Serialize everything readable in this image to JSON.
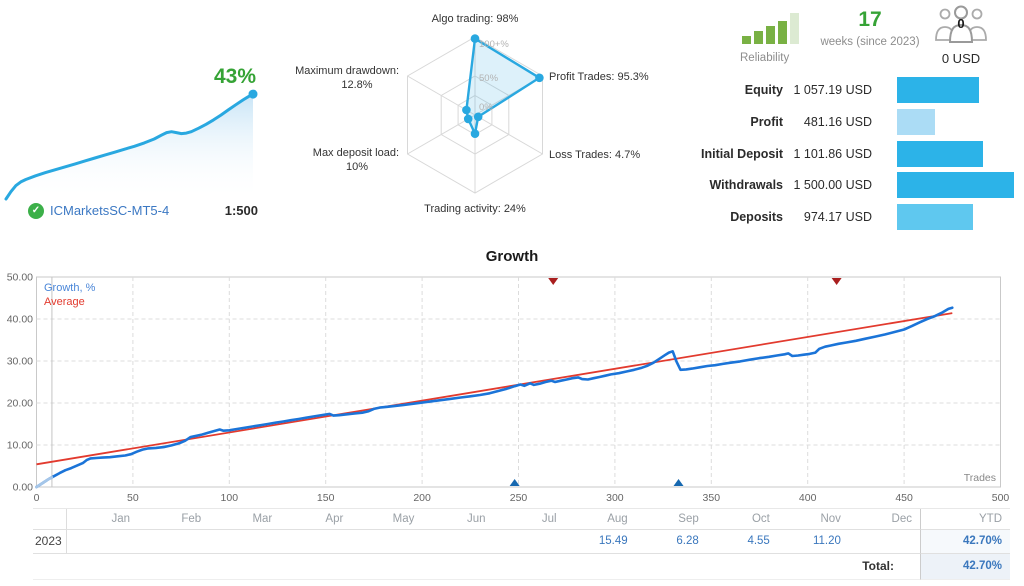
{
  "account": {
    "growth_label": "43%",
    "server": "ICMarketsSC-MT5-4",
    "leverage": "1:500",
    "verified_icon": "check-badge-icon"
  },
  "summary": {
    "reliability_label": "Reliability",
    "reliability_bars": [
      8,
      13,
      18,
      23,
      31
    ],
    "reliability_active_color": "#79b144",
    "reliability_inactive_color": "#dcead2",
    "weeks_value": "17",
    "weeks_label": "weeks (since 2023)",
    "members_count": "0",
    "members_funds": "0 USD",
    "bars_max": 1500,
    "rows": [
      {
        "label": "Equity",
        "value": "1 057.19 USD",
        "amount": 1057.19,
        "color": "#2cb3e8"
      },
      {
        "label": "Profit",
        "value": "481.16 USD",
        "amount": 481.16,
        "color": "#abdcf5"
      },
      {
        "label": "Initial Deposit",
        "value": "1 101.86 USD",
        "amount": 1101.86,
        "color": "#2cb3e8"
      },
      {
        "label": "Withdrawals",
        "value": "1 500.00 USD",
        "amount": 1500.0,
        "color": "#2cb3e8"
      },
      {
        "label": "Deposits",
        "value": "974.17 USD",
        "amount": 974.17,
        "color": "#5fc8ef"
      }
    ]
  },
  "chart_data": [
    {
      "type": "area",
      "title": "Account growth mini chart",
      "value_label": "43%",
      "line_color": "#29a8e0",
      "x_range": [
        0,
        100
      ],
      "y_range": [
        0,
        43
      ],
      "points": [
        [
          0,
          0
        ],
        [
          2,
          3
        ],
        [
          4,
          5.5
        ],
        [
          6,
          7
        ],
        [
          8,
          8
        ],
        [
          12,
          9.5
        ],
        [
          16,
          10.8
        ],
        [
          20,
          12
        ],
        [
          24,
          13.2
        ],
        [
          28,
          14.4
        ],
        [
          32,
          15.6
        ],
        [
          36,
          16.8
        ],
        [
          40,
          18
        ],
        [
          44,
          19.2
        ],
        [
          48,
          20.4
        ],
        [
          52,
          21.6
        ],
        [
          56,
          23
        ],
        [
          60,
          24.6
        ],
        [
          63,
          26.2
        ],
        [
          65,
          27.2
        ],
        [
          67,
          27.6
        ],
        [
          69,
          27.2
        ],
        [
          71,
          26.8
        ],
        [
          73,
          27
        ],
        [
          75,
          27.6
        ],
        [
          78,
          29
        ],
        [
          81,
          30.6
        ],
        [
          84,
          32.4
        ],
        [
          87,
          34.4
        ],
        [
          90,
          36.5
        ],
        [
          93,
          38.6
        ],
        [
          96,
          40.6
        ],
        [
          98,
          41.9
        ],
        [
          100,
          43
        ]
      ]
    },
    {
      "type": "radar",
      "categories": [
        "Algo trading",
        "Profit Trades",
        "Loss Trades",
        "Trading activity",
        "Max deposit load",
        "Maximum drawdown"
      ],
      "values": [
        98,
        95.3,
        4.7,
        24,
        10,
        12.8
      ],
      "max": 100,
      "rings": [
        1,
        0.5,
        0.25
      ],
      "ring_labels": [
        "100+%",
        "50%",
        "0%"
      ],
      "axis_labels": [
        [
          "Algo trading: 98%"
        ],
        [
          "Profit Trades: 95.3%"
        ],
        [
          "Loss Trades: 4.7%"
        ],
        [
          "Trading activity: 24%"
        ],
        [
          "Max deposit load:",
          "10%"
        ],
        [
          "Maximum drawdown:",
          "12.8%"
        ]
      ],
      "stroke_color": "#29a8e0"
    },
    {
      "type": "line",
      "title": "Growth",
      "xlabel": "Trades",
      "legend": [
        "Growth, %",
        "Average"
      ],
      "xlim": [
        0,
        500
      ],
      "ylim": [
        0,
        50
      ],
      "x_ticks": [
        0,
        50,
        100,
        150,
        200,
        250,
        300,
        350,
        400,
        450,
        500
      ],
      "y_ticks": [
        "0.00",
        "10.00",
        "20.00",
        "30.00",
        "40.00",
        "50.00"
      ],
      "grid": "dashed",
      "markers": {
        "start_line_trade": 8,
        "loss_events_trades": [
          268,
          415
        ],
        "deposit_events_trades": [
          248,
          333
        ]
      },
      "series": [
        {
          "name": "Growth, %",
          "color": "#1b74d8",
          "points": [
            [
              0,
              0
            ],
            [
              2,
              0.6
            ],
            [
              4,
              1.2
            ],
            [
              6,
              1.8
            ],
            [
              8,
              2.3
            ],
            [
              10,
              2.8
            ],
            [
              12,
              3.3
            ],
            [
              15,
              4.0
            ],
            [
              18,
              4.5
            ],
            [
              21,
              5.1
            ],
            [
              24,
              5.7
            ],
            [
              26,
              6.4
            ],
            [
              28,
              6.8
            ],
            [
              31,
              6.9
            ],
            [
              34,
              7.0
            ],
            [
              38,
              7.1
            ],
            [
              42,
              7.3
            ],
            [
              46,
              7.5
            ],
            [
              49,
              7.8
            ],
            [
              52,
              8.4
            ],
            [
              55,
              8.9
            ],
            [
              58,
              9.2
            ],
            [
              62,
              9.3
            ],
            [
              66,
              9.5
            ],
            [
              70,
              9.9
            ],
            [
              74,
              10.4
            ],
            [
              77,
              11.0
            ],
            [
              80,
              11.9
            ],
            [
              83,
              12.2
            ],
            [
              86,
              12.5
            ],
            [
              89,
              12.9
            ],
            [
              92,
              13.3
            ],
            [
              95,
              13.7
            ],
            [
              97,
              13.4
            ],
            [
              100,
              13.5
            ],
            [
              104,
              13.8
            ],
            [
              108,
              14.1
            ],
            [
              112,
              14.4
            ],
            [
              116,
              14.7
            ],
            [
              120,
              15.0
            ],
            [
              124,
              15.3
            ],
            [
              128,
              15.6
            ],
            [
              132,
              15.9
            ],
            [
              136,
              16.2
            ],
            [
              140,
              16.5
            ],
            [
              144,
              16.8
            ],
            [
              148,
              17.1
            ],
            [
              152,
              17.4
            ],
            [
              154,
              17.0
            ],
            [
              157,
              17.1
            ],
            [
              161,
              17.3
            ],
            [
              165,
              17.5
            ],
            [
              169,
              17.7
            ],
            [
              172,
              18.0
            ],
            [
              175,
              18.6
            ],
            [
              178,
              18.9
            ],
            [
              182,
              19.1
            ],
            [
              186,
              19.3
            ],
            [
              190,
              19.5
            ],
            [
              195,
              19.8
            ],
            [
              200,
              20.1
            ],
            [
              205,
              20.4
            ],
            [
              210,
              20.7
            ],
            [
              215,
              21.0
            ],
            [
              220,
              21.3
            ],
            [
              225,
              21.6
            ],
            [
              230,
              21.9
            ],
            [
              235,
              22.3
            ],
            [
              240,
              22.9
            ],
            [
              244,
              23.4
            ],
            [
              248,
              24.0
            ],
            [
              251,
              24.4
            ],
            [
              253,
              24.1
            ],
            [
              256,
              24.7
            ],
            [
              258,
              24.3
            ],
            [
              261,
              24.6
            ],
            [
              264,
              25.0
            ],
            [
              267,
              25.3
            ],
            [
              269,
              25.0
            ],
            [
              272,
              25.3
            ],
            [
              275,
              25.6
            ],
            [
              278,
              25.9
            ],
            [
              281,
              26.1
            ],
            [
              283,
              25.7
            ],
            [
              286,
              25.6
            ],
            [
              289,
              25.9
            ],
            [
              292,
              26.2
            ],
            [
              295,
              26.5
            ],
            [
              298,
              26.8
            ],
            [
              302,
              27.1
            ],
            [
              306,
              27.5
            ],
            [
              310,
              27.9
            ],
            [
              314,
              28.4
            ],
            [
              317,
              28.9
            ],
            [
              320,
              29.6
            ],
            [
              323,
              30.5
            ],
            [
              326,
              31.4
            ],
            [
              328,
              32.0
            ],
            [
              330,
              32.3
            ],
            [
              332,
              29.8
            ],
            [
              334,
              27.9
            ],
            [
              337,
              28.0
            ],
            [
              340,
              28.2
            ],
            [
              344,
              28.5
            ],
            [
              348,
              28.8
            ],
            [
              352,
              29.0
            ],
            [
              356,
              29.3
            ],
            [
              360,
              29.6
            ],
            [
              365,
              29.9
            ],
            [
              370,
              30.3
            ],
            [
              375,
              30.7
            ],
            [
              380,
              31.0
            ],
            [
              384,
              31.3
            ],
            [
              388,
              31.6
            ],
            [
              390,
              31.8
            ],
            [
              392,
              31.2
            ],
            [
              395,
              31.3
            ],
            [
              398,
              31.5
            ],
            [
              401,
              31.7
            ],
            [
              404,
              32.0
            ],
            [
              406,
              32.9
            ],
            [
              409,
              33.4
            ],
            [
              412,
              33.7
            ],
            [
              416,
              34.1
            ],
            [
              420,
              34.4
            ],
            [
              425,
              34.8
            ],
            [
              430,
              35.3
            ],
            [
              435,
              35.8
            ],
            [
              440,
              36.3
            ],
            [
              445,
              36.9
            ],
            [
              450,
              37.5
            ],
            [
              454,
              38.3
            ],
            [
              458,
              39.2
            ],
            [
              462,
              40.0
            ],
            [
              466,
              40.7
            ],
            [
              470,
              41.6
            ],
            [
              473,
              42.4
            ],
            [
              475,
              42.7
            ]
          ]
        },
        {
          "name": "Average",
          "color": "#e23a2e",
          "points": [
            [
              0,
              5.4
            ],
            [
              475,
              41.4
            ]
          ]
        }
      ]
    }
  ],
  "monthly_table": {
    "columns": [
      "Jan",
      "Feb",
      "Mar",
      "Apr",
      "May",
      "Jun",
      "Jul",
      "Aug",
      "Sep",
      "Oct",
      "Nov",
      "Dec"
    ],
    "ytd_label": "YTD",
    "rows": [
      {
        "year": "2023",
        "values": [
          "",
          "",
          "",
          "",
          "",
          "",
          "",
          "15.49",
          "6.28",
          "4.55",
          "11.20",
          ""
        ],
        "ytd": "42.70%"
      }
    ],
    "total_label": "Total:",
    "total_value": "42.70%"
  }
}
